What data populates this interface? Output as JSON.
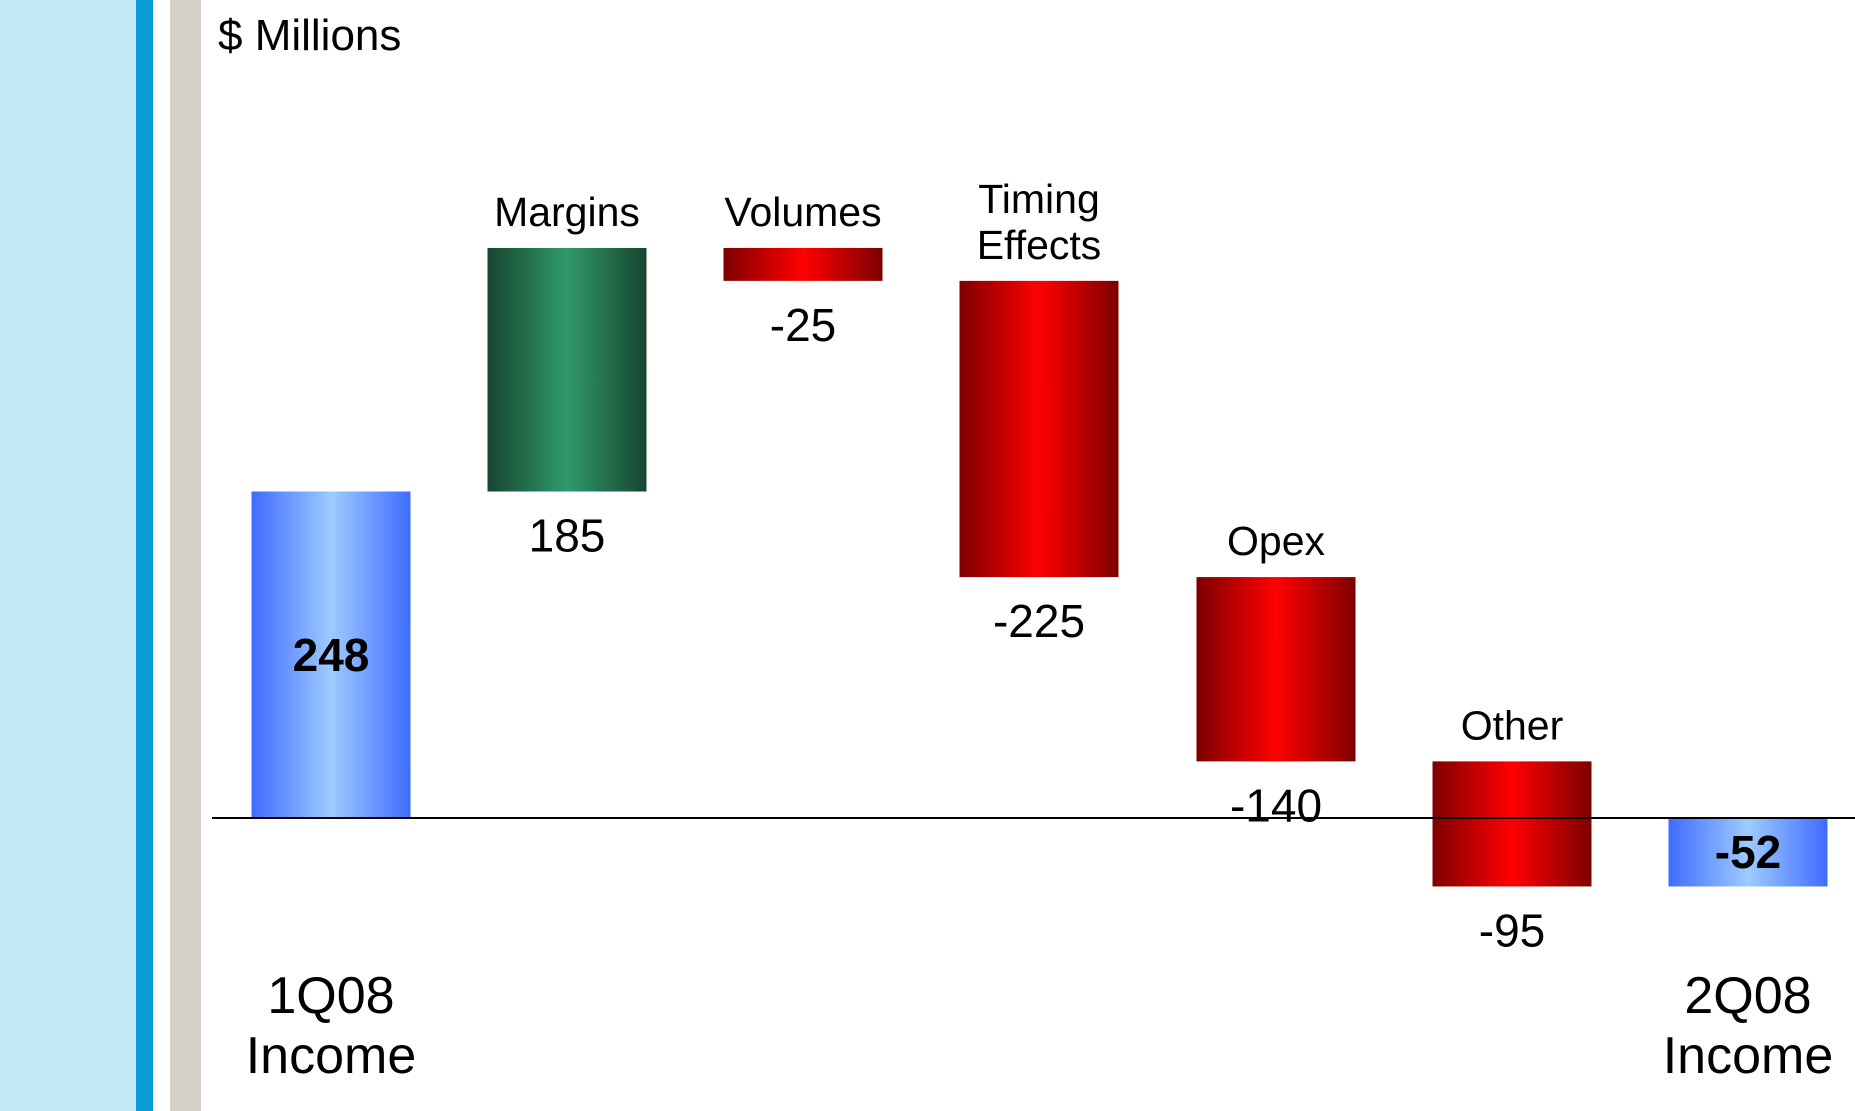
{
  "units_label": "$ Millions",
  "colors": {
    "income": [
      "#3f6bff",
      "#9ecbff",
      "#3f6bff"
    ],
    "increase": [
      "#174530",
      "#2f9a6b",
      "#174530"
    ],
    "decrease": [
      "#7d0000",
      "#ff0000",
      "#7d0000"
    ],
    "sidebar_light": "#c2e8f5",
    "sidebar_blue": "#0a9ad6",
    "sidebar_gray": "#d6d0cb"
  },
  "chart_data": {
    "type": "waterfall",
    "title": "",
    "ylabel": "$ Millions",
    "grid": false,
    "legend": "none",
    "steps": [
      {
        "label": [
          "1Q08",
          "Income"
        ],
        "value": 248,
        "kind": "total",
        "value_text": "248"
      },
      {
        "label": [
          "Margins"
        ],
        "value": 185,
        "kind": "increase",
        "value_text": "185"
      },
      {
        "label": [
          "Volumes"
        ],
        "value": -25,
        "kind": "decrease",
        "value_text": "-25"
      },
      {
        "label": [
          "Timing",
          "Effects"
        ],
        "value": -225,
        "kind": "decrease",
        "value_text": "-225"
      },
      {
        "label": [
          "Opex"
        ],
        "value": -140,
        "kind": "decrease",
        "value_text": "-140"
      },
      {
        "label": [
          "Other"
        ],
        "value": -95,
        "kind": "decrease",
        "value_text": "-95"
      },
      {
        "label": [
          "2Q08",
          "Income"
        ],
        "value": -52,
        "kind": "total",
        "value_text": "-52"
      }
    ]
  }
}
